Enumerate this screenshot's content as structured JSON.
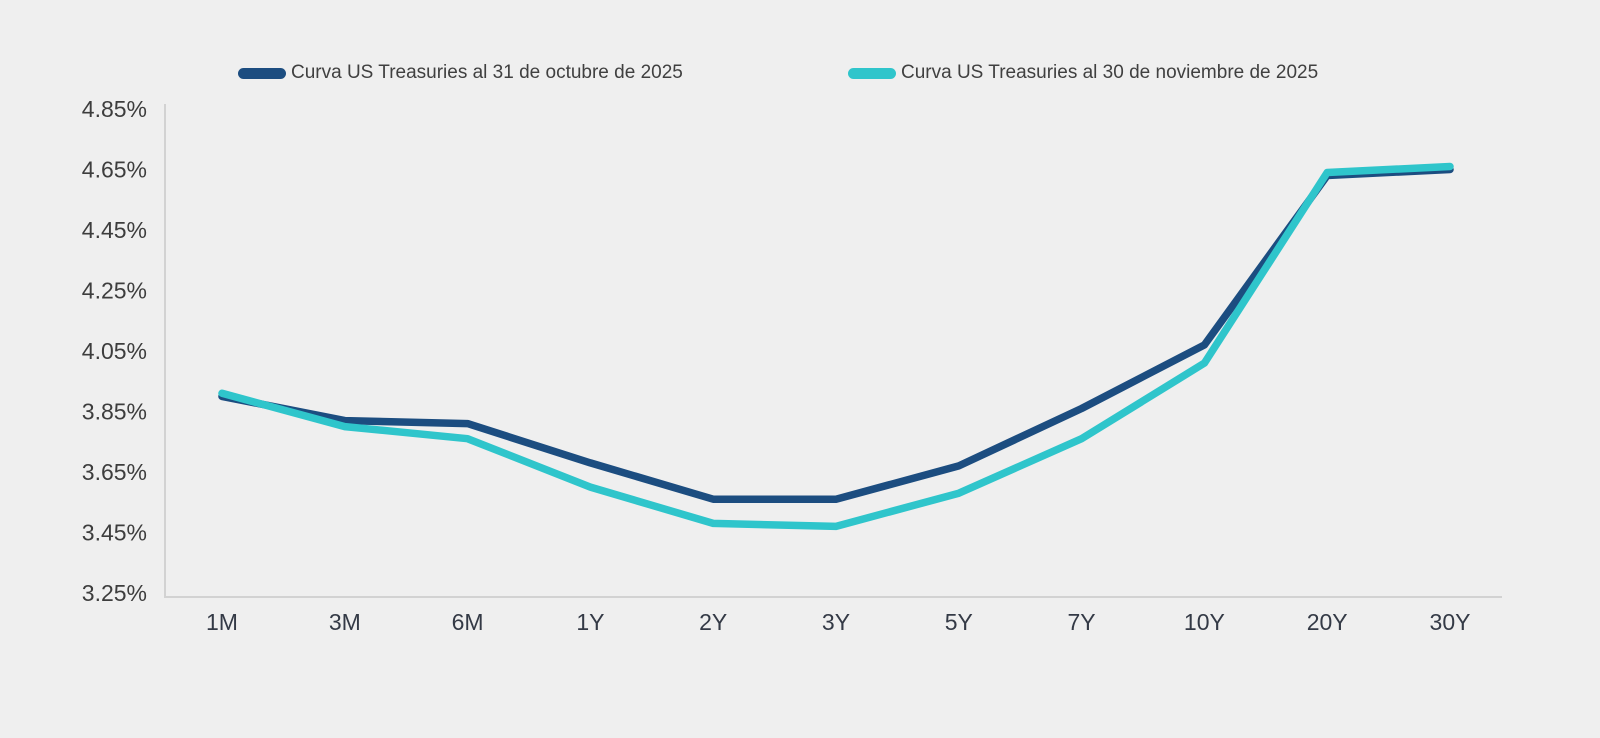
{
  "chart_data": {
    "type": "line",
    "title": "",
    "xlabel": "",
    "ylabel": "",
    "categories": [
      "1M",
      "3M",
      "6M",
      "1Y",
      "2Y",
      "3Y",
      "5Y",
      "7Y",
      "10Y",
      "20Y",
      "30Y"
    ],
    "series": [
      {
        "name": "Curva US Treasuries al 31 de octubre de 2025",
        "color": "#1c4d80",
        "values": [
          3.9,
          3.82,
          3.81,
          3.68,
          3.56,
          3.56,
          3.67,
          3.86,
          4.07,
          4.63,
          4.65
        ]
      },
      {
        "name": "Curva US Treasuries al 30 de noviembre de 2025",
        "color": "#2fc5cb",
        "values": [
          3.91,
          3.8,
          3.76,
          3.6,
          3.48,
          3.47,
          3.58,
          3.76,
          4.01,
          4.64,
          4.66
        ]
      }
    ],
    "ylim": [
      3.25,
      4.85
    ],
    "ytick_step": 0.2,
    "ytick_labels": [
      "4.85%",
      "4.65%",
      "4.45%",
      "4.25%",
      "4.05%",
      "3.85%",
      "3.65%",
      "3.45%",
      "3.25%"
    ],
    "grid": false,
    "legend_position": "top",
    "axis_color": "#d2d2d2",
    "background_color": "#efefef"
  }
}
